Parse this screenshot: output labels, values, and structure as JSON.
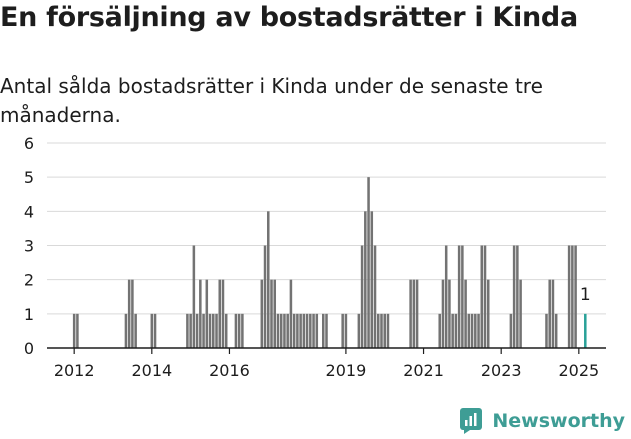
{
  "title": "En försäljning av bostadsrätter i Kinda",
  "subtitle": "Antal sålda bostadsrätter i Kinda under de senaste tre månaderna.",
  "brand": {
    "name": "Newsworthy",
    "icon": "newsworthy-logo-icon"
  },
  "colors": {
    "bar": "#737373",
    "highlight": "#2aa198",
    "grid": "#d9d9d9",
    "brand": "#3e9d95"
  },
  "chart_data": {
    "type": "bar",
    "title": "",
    "xlabel": "",
    "ylabel": "",
    "ylim": [
      0,
      6
    ],
    "yticks": [
      0,
      1,
      2,
      3,
      4,
      5,
      6
    ],
    "xticks": [
      "2012",
      "2014",
      "2016",
      "2019",
      "2021",
      "2023",
      "2025"
    ],
    "xtick_years": [
      2012.0,
      2014.0,
      2016.0,
      2019.0,
      2021.0,
      2023.0,
      2025.0
    ],
    "x_range": [
      2011.3,
      2025.7
    ],
    "grid": true,
    "annotation": {
      "text": "1",
      "target": "last-bar"
    },
    "bars": [
      {
        "period": "2012-01",
        "value": 1
      },
      {
        "period": "2012-02",
        "value": 1
      },
      {
        "period": "2013-05",
        "value": 1
      },
      {
        "period": "2013-06",
        "value": 2
      },
      {
        "period": "2013-07",
        "value": 2
      },
      {
        "period": "2013-08",
        "value": 1
      },
      {
        "period": "2014-01",
        "value": 1
      },
      {
        "period": "2014-02",
        "value": 1
      },
      {
        "period": "2014-12",
        "value": 1
      },
      {
        "period": "2015-01",
        "value": 1
      },
      {
        "period": "2015-02",
        "value": 3
      },
      {
        "period": "2015-03",
        "value": 1
      },
      {
        "period": "2015-04",
        "value": 2
      },
      {
        "period": "2015-05",
        "value": 1
      },
      {
        "period": "2015-06",
        "value": 2
      },
      {
        "period": "2015-07",
        "value": 1
      },
      {
        "period": "2015-08",
        "value": 1
      },
      {
        "period": "2015-09",
        "value": 1
      },
      {
        "period": "2015-10",
        "value": 2
      },
      {
        "period": "2015-11",
        "value": 2
      },
      {
        "period": "2015-12",
        "value": 1
      },
      {
        "period": "2016-03",
        "value": 1
      },
      {
        "period": "2016-04",
        "value": 1
      },
      {
        "period": "2016-05",
        "value": 1
      },
      {
        "period": "2016-11",
        "value": 2
      },
      {
        "period": "2016-12",
        "value": 3
      },
      {
        "period": "2017-01",
        "value": 4
      },
      {
        "period": "2017-02",
        "value": 2
      },
      {
        "period": "2017-03",
        "value": 2
      },
      {
        "period": "2017-04",
        "value": 1
      },
      {
        "period": "2017-05",
        "value": 1
      },
      {
        "period": "2017-06",
        "value": 1
      },
      {
        "period": "2017-07",
        "value": 1
      },
      {
        "period": "2017-08",
        "value": 2
      },
      {
        "period": "2017-09",
        "value": 1
      },
      {
        "period": "2017-10",
        "value": 1
      },
      {
        "period": "2017-11",
        "value": 1
      },
      {
        "period": "2017-12",
        "value": 1
      },
      {
        "period": "2018-01",
        "value": 1
      },
      {
        "period": "2018-02",
        "value": 1
      },
      {
        "period": "2018-03",
        "value": 1
      },
      {
        "period": "2018-04",
        "value": 1
      },
      {
        "period": "2018-06",
        "value": 1
      },
      {
        "period": "2018-07",
        "value": 1
      },
      {
        "period": "2018-12",
        "value": 1
      },
      {
        "period": "2019-01",
        "value": 1
      },
      {
        "period": "2019-05",
        "value": 1
      },
      {
        "period": "2019-06",
        "value": 3
      },
      {
        "period": "2019-07",
        "value": 4
      },
      {
        "period": "2019-08",
        "value": 5
      },
      {
        "period": "2019-09",
        "value": 4
      },
      {
        "period": "2019-10",
        "value": 3
      },
      {
        "period": "2019-11",
        "value": 1
      },
      {
        "period": "2019-12",
        "value": 1
      },
      {
        "period": "2020-01",
        "value": 1
      },
      {
        "period": "2020-02",
        "value": 1
      },
      {
        "period": "2020-09",
        "value": 2
      },
      {
        "period": "2020-10",
        "value": 2
      },
      {
        "period": "2020-11",
        "value": 2
      },
      {
        "period": "2021-06",
        "value": 1
      },
      {
        "period": "2021-07",
        "value": 2
      },
      {
        "period": "2021-08",
        "value": 3
      },
      {
        "period": "2021-09",
        "value": 2
      },
      {
        "period": "2021-10",
        "value": 1
      },
      {
        "period": "2021-11",
        "value": 1
      },
      {
        "period": "2021-12",
        "value": 3
      },
      {
        "period": "2022-01",
        "value": 3
      },
      {
        "period": "2022-02",
        "value": 2
      },
      {
        "period": "2022-03",
        "value": 1
      },
      {
        "period": "2022-04",
        "value": 1
      },
      {
        "period": "2022-05",
        "value": 1
      },
      {
        "period": "2022-06",
        "value": 1
      },
      {
        "period": "2022-07",
        "value": 3
      },
      {
        "period": "2022-08",
        "value": 3
      },
      {
        "period": "2022-09",
        "value": 2
      },
      {
        "period": "2023-04",
        "value": 1
      },
      {
        "period": "2023-05",
        "value": 3
      },
      {
        "period": "2023-06",
        "value": 3
      },
      {
        "period": "2023-07",
        "value": 2
      },
      {
        "period": "2024-03",
        "value": 1
      },
      {
        "period": "2024-04",
        "value": 2
      },
      {
        "period": "2024-05",
        "value": 2
      },
      {
        "period": "2024-06",
        "value": 1
      },
      {
        "period": "2024-10",
        "value": 3
      },
      {
        "period": "2024-11",
        "value": 3
      },
      {
        "period": "2024-12",
        "value": 3
      },
      {
        "period": "2025-03",
        "value": 1,
        "highlight": true
      }
    ]
  }
}
